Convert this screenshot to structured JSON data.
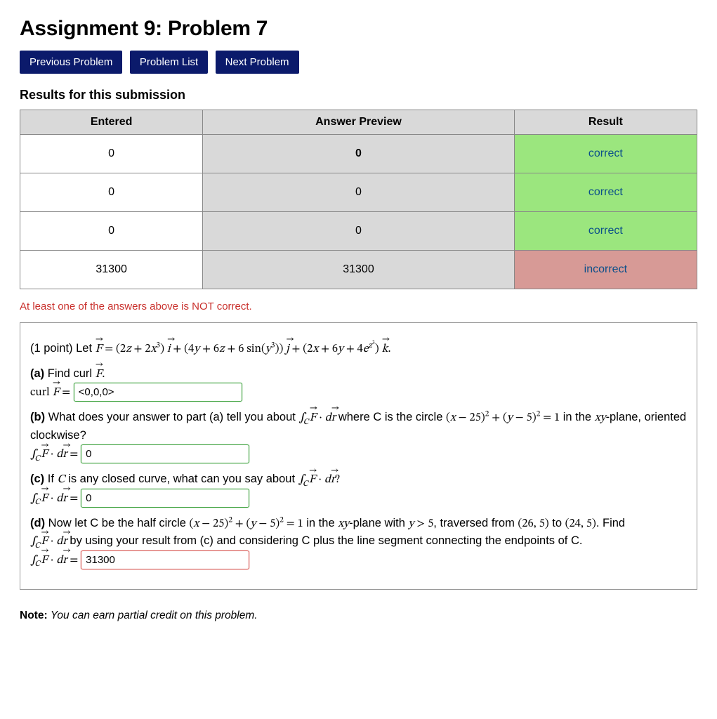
{
  "title": "Assignment 9: Problem 7",
  "nav": {
    "prev": "Previous Problem",
    "list": "Problem List",
    "next": "Next Problem"
  },
  "results": {
    "heading": "Results for this submission",
    "columns": [
      "Entered",
      "Answer Preview",
      "Result"
    ],
    "column_widths_pct": [
      27,
      46,
      27
    ],
    "header_bg": "#d9d9d9",
    "border_color": "#888888",
    "rows": [
      {
        "entered": "0",
        "preview": "0",
        "preview_bold": true,
        "result": "correct",
        "result_status": "correct"
      },
      {
        "entered": "0",
        "preview": "0",
        "preview_bold": false,
        "result": "correct",
        "result_status": "correct"
      },
      {
        "entered": "0",
        "preview": "0",
        "preview_bold": false,
        "result": "correct",
        "result_status": "correct"
      },
      {
        "entered": "31300",
        "preview": "31300",
        "preview_bold": false,
        "result": "incorrect",
        "result_status": "incorrect"
      }
    ],
    "status_colors": {
      "correct": "#9be67e",
      "incorrect": "#d79a96"
    },
    "result_text_color": "#0b4f8a"
  },
  "warning": "At least one of the answers above is NOT correct.",
  "warning_color": "#c9302c",
  "problem": {
    "points_label": "(1 point)",
    "let_label": "Let",
    "F_components": {
      "i": "(2z + 2x³)",
      "j": "(4y + 6z + 6 sin(y³))",
      "k": "(2x + 6y + 4e^{z³})"
    },
    "parts": {
      "a": {
        "label": "(a)",
        "text": "Find curl",
        "prompt": "curl",
        "answer_value": "<0,0,0>",
        "status": "ok"
      },
      "b": {
        "label": "(b)",
        "text_prefix": "What does your answer to part (a) tell you about",
        "circle_eq": "(x − 25)² + (y − 5)² = 1",
        "plane": "xy",
        "text_suffix": "-plane, oriented clockwise?",
        "where_C": "where C is the circle",
        "answer_value": "0",
        "status": "ok"
      },
      "c": {
        "label": "(c)",
        "text_prefix": "If C is any closed curve, what can you say about",
        "answer_value": "0",
        "status": "ok"
      },
      "d": {
        "label": "(d)",
        "text_prefix": "Now let C be the half circle",
        "half_circle_eq": "(x − 25)² + (y − 5)² = 1",
        "condition": "y > 5",
        "from_pt": "(26, 5)",
        "to_pt": "(24, 5)",
        "plane": "xy",
        "traversed": "traversed from",
        "to_word": "to",
        "find_word": "Find",
        "text_line2": "by using your result from (c) and considering C plus the line segment connecting the endpoints of C.",
        "answer_value": "31300",
        "status": "bad"
      }
    }
  },
  "note": {
    "label": "Note:",
    "text": "You can earn partial credit on this problem."
  },
  "colors": {
    "nav_bg": "#0b1a6b",
    "input_ok_border": "#3aa03a",
    "input_bad_border": "#d85a56"
  }
}
